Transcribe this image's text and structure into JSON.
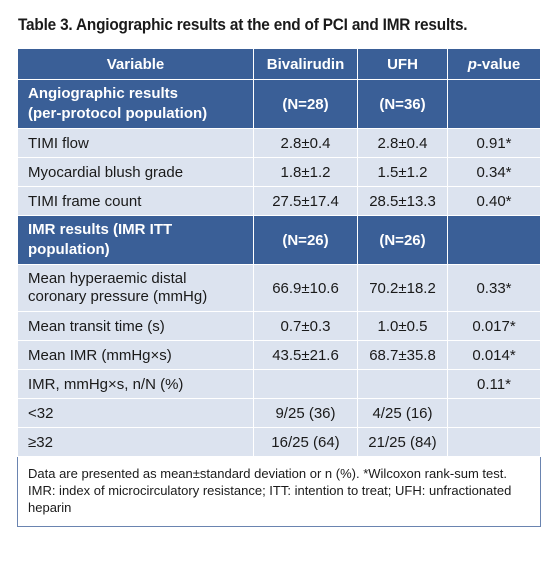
{
  "caption": "Table 3. Angiographic results at the end of PCI and IMR results.",
  "header": {
    "variable": "Variable",
    "bivalirudin": "Bivalirudin",
    "ufh": "UFH",
    "pvalue_italic": "p",
    "pvalue_rest": "-value"
  },
  "section1": {
    "label_line1": "Angiographic results",
    "label_line2": "(per-protocol population)",
    "n_biv": "(N=28)",
    "n_ufh": "(N=36)"
  },
  "rows1": [
    {
      "label": "TIMI flow",
      "biv": "2.8±0.4",
      "ufh": "2.8±0.4",
      "p": "0.91*"
    },
    {
      "label": "Myocardial blush grade",
      "biv": "1.8±1.2",
      "ufh": "1.5±1.2",
      "p": "0.34*"
    },
    {
      "label": "TIMI frame count",
      "biv": "27.5±17.4",
      "ufh": "28.5±13.3",
      "p": "0.40*"
    }
  ],
  "section2": {
    "label_line1": "IMR results (IMR ITT",
    "label_line2": "population)",
    "n_biv": "(N=26)",
    "n_ufh": "(N=26)"
  },
  "rows2": [
    {
      "label_line1": "Mean hyperaemic distal",
      "label_line2": "coronary pressure (mmHg)",
      "biv": "66.9±10.6",
      "ufh": "70.2±18.2",
      "p": "0.33*"
    },
    {
      "label": "Mean transit time (s)",
      "biv": "0.7±0.3",
      "ufh": "1.0±0.5",
      "p": "0.017*"
    },
    {
      "label": "Mean IMR (mmHg×s)",
      "biv": "43.5±21.6",
      "ufh": "68.7±35.8",
      "p": "0.014*"
    },
    {
      "label": "IMR, mmHg×s, n/N (%)",
      "biv": "",
      "ufh": "",
      "p": "0.11*"
    },
    {
      "label": "<32",
      "biv": "9/25 (36)",
      "ufh": "4/25 (16)",
      "p": ""
    },
    {
      "label": "≥32",
      "biv": "16/25 (64)",
      "ufh": "21/25 (84)",
      "p": ""
    }
  ],
  "footnote": "Data are presented as mean±standard deviation or n (%). *Wilcoxon rank-sum test. IMR: index of microcirculatory resistance; ITT: intention to treat; UFH: unfractionated heparin"
}
